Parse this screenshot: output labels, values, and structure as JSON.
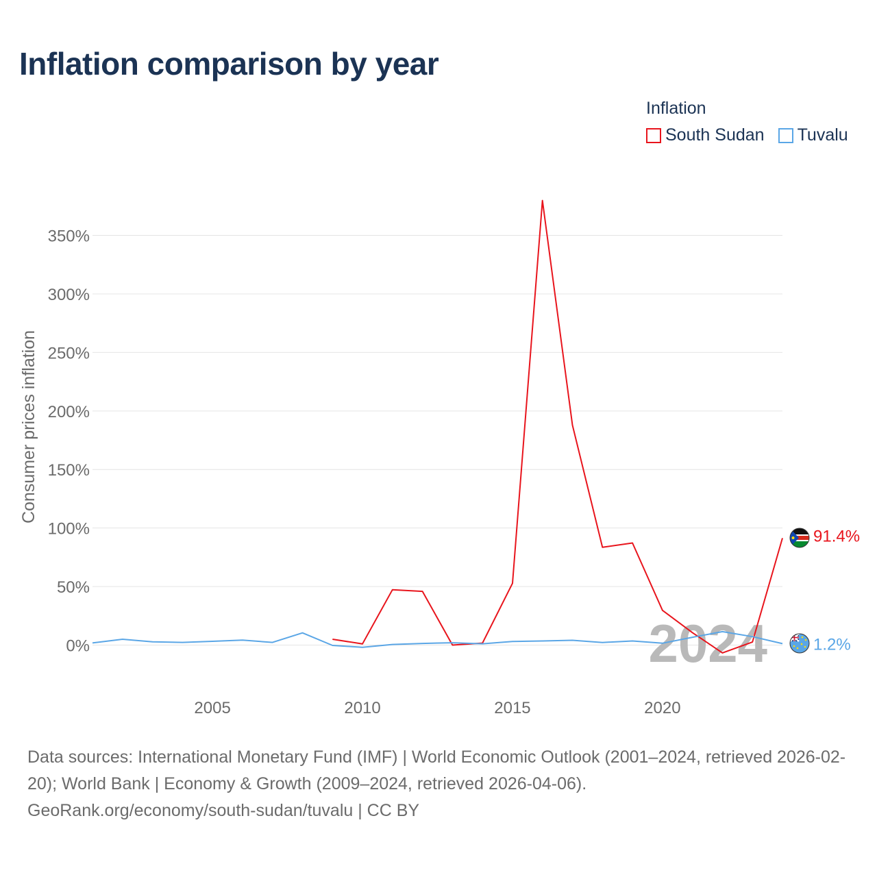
{
  "title": "Inflation comparison by year",
  "legend": {
    "title": "Inflation",
    "items": [
      {
        "label": "South Sudan",
        "color": "#e8141c"
      },
      {
        "label": "Tuvalu",
        "color": "#5aa6e6"
      }
    ]
  },
  "chart_data": {
    "type": "line",
    "title": "Inflation comparison by year",
    "ylabel": "Consumer prices inflation",
    "xlabel": "",
    "ylim": [
      -25,
      385
    ],
    "xlim": [
      2001,
      2024
    ],
    "grid": true,
    "y_ticks": [
      {
        "value": 0,
        "label": "0%"
      },
      {
        "value": 50,
        "label": "50%"
      },
      {
        "value": 100,
        "label": "100%"
      },
      {
        "value": 150,
        "label": "150%"
      },
      {
        "value": 200,
        "label": "200%"
      },
      {
        "value": 250,
        "label": "250%"
      },
      {
        "value": 300,
        "label": "300%"
      },
      {
        "value": 350,
        "label": "350%"
      }
    ],
    "x_ticks": [
      {
        "value": 2005,
        "label": "2005"
      },
      {
        "value": 2010,
        "label": "2010"
      },
      {
        "value": 2015,
        "label": "2015"
      },
      {
        "value": 2020,
        "label": "2020"
      }
    ],
    "watermark_year": "2024",
    "series": [
      {
        "name": "South Sudan",
        "color": "#e8141c",
        "end_label": "91.4%",
        "x": [
          2009,
          2010,
          2011,
          2012,
          2013,
          2014,
          2015,
          2016,
          2017,
          2018,
          2019,
          2020,
          2021,
          2022,
          2023,
          2024
        ],
        "values": [
          5,
          1,
          47.3,
          45.9,
          0,
          1.7,
          52.8,
          379.8,
          187.9,
          83.5,
          87.2,
          29.7,
          10.6,
          -6.7,
          2.6,
          91.4
        ]
      },
      {
        "name": "Tuvalu",
        "color": "#5aa6e6",
        "end_label": "1.2%",
        "x": [
          2001,
          2002,
          2003,
          2004,
          2005,
          2006,
          2007,
          2008,
          2009,
          2010,
          2011,
          2012,
          2013,
          2014,
          2015,
          2016,
          2017,
          2018,
          2019,
          2020,
          2021,
          2022,
          2023,
          2024
        ],
        "values": [
          1.8,
          5,
          2.8,
          2.3,
          3.2,
          4.2,
          2.3,
          10.4,
          -0.3,
          -1.9,
          0.5,
          1.4,
          2,
          1.1,
          3.1,
          3.5,
          4.1,
          2.2,
          3.5,
          1.6,
          6.7,
          11.5,
          7.2,
          1.2
        ]
      }
    ]
  },
  "footer": {
    "sources": "Data sources: International Monetary Fund (IMF) | World Economic Outlook (2001–2024, retrieved 2026-02-20); World Bank | Economy & Growth (2009–2024, retrieved 2026-04-06).",
    "credit": "GeoRank.org/economy/south-sudan/tuvalu | CC BY"
  }
}
